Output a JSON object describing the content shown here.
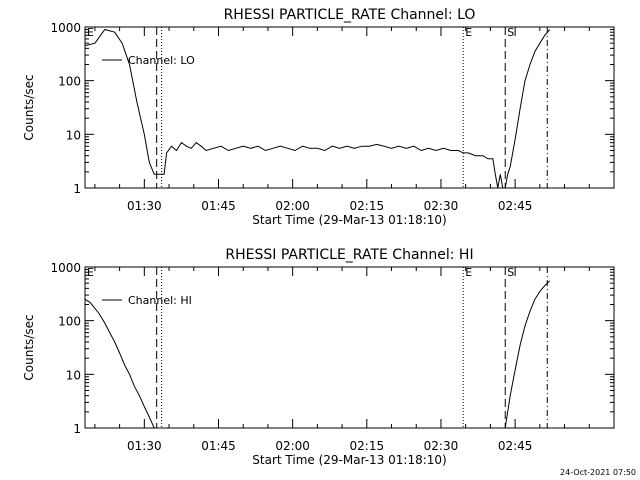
{
  "footer": {
    "timestamp": "24-Oct-2021 07:50"
  },
  "chart_data": [
    {
      "type": "line",
      "title": "RHESSI PARTICLE_RATE Channel: LO",
      "xlabel": "Start Time (29-Mar-13 01:18:10)",
      "ylabel": "Counts/sec",
      "yscale": "log",
      "ylim": [
        1,
        1000
      ],
      "xlim_minutes": [
        0,
        107
      ],
      "xtick_minutes": [
        12,
        27,
        42,
        57,
        72,
        87
      ],
      "xtick_labels": [
        "01:30",
        "01:45",
        "02:00",
        "02:15",
        "02:30",
        "02:45"
      ],
      "ytick_values": [
        1,
        10,
        100,
        1000
      ],
      "ytick_labels": [
        "1",
        "10",
        "100",
        "1000"
      ],
      "legend": {
        "label": "Channel: LO",
        "position": "top-left"
      },
      "markers": [
        {
          "label": "E",
          "minutes": 0,
          "style": "none"
        },
        {
          "label": "",
          "minutes": 14.5,
          "style": "dashed"
        },
        {
          "label": "",
          "minutes": 15.5,
          "style": "dotted"
        },
        {
          "label": "E",
          "minutes": 76.5,
          "style": "dotted"
        },
        {
          "label": "S",
          "minutes": 85,
          "style": "dashed"
        },
        {
          "label": "",
          "minutes": 93.5,
          "style": "dashdot"
        }
      ],
      "series": [
        {
          "name": "Channel: LO",
          "x": [
            0,
            2,
            4,
            6,
            7.5,
            9,
            10.5,
            12,
            13,
            14,
            14.5,
            15,
            15.5,
            16,
            16.5,
            17.5,
            18.5,
            19.5,
            20.5,
            21.5,
            22.5,
            23.5,
            24.5,
            26,
            27.5,
            29,
            30.5,
            32,
            33.5,
            35,
            36.5,
            38,
            39.5,
            41,
            42.5,
            44,
            45.5,
            47,
            48.5,
            50,
            51.5,
            53,
            54.5,
            56,
            57.5,
            59,
            60.5,
            62,
            63.5,
            65,
            66.5,
            68,
            69.5,
            71,
            72.5,
            74,
            75.5,
            76.5,
            77.5,
            79,
            80.5,
            81.5,
            82.5,
            83,
            83.5,
            84,
            84.5,
            85,
            85.5,
            86,
            87,
            88,
            89,
            90,
            91,
            92,
            93,
            94
          ],
          "y": [
            450,
            500,
            900,
            800,
            500,
            200,
            40,
            10,
            3,
            1.8,
            1.8,
            1.8,
            1.8,
            1.8,
            4.5,
            6,
            5,
            7,
            6,
            5.5,
            7,
            6,
            5,
            5.5,
            6,
            5,
            5.5,
            6,
            5.5,
            6,
            5,
            5.5,
            6,
            5.5,
            5,
            6,
            5.5,
            5.5,
            5,
            6,
            5.5,
            6,
            5.5,
            6,
            6,
            6.5,
            6,
            5.5,
            6,
            5.5,
            6,
            5,
            5.5,
            5,
            5.5,
            5,
            5,
            4.5,
            4.5,
            4,
            4,
            3.5,
            3.5,
            1.8,
            1,
            1.8,
            1,
            1,
            1.8,
            2.5,
            8,
            30,
            100,
            200,
            350,
            500,
            700,
            900
          ]
        }
      ]
    },
    {
      "type": "line",
      "title": "RHESSI PARTICLE_RATE Channel: HI",
      "xlabel": "Start Time (29-Mar-13 01:18:10)",
      "ylabel": "Counts/sec",
      "yscale": "log",
      "ylim": [
        1,
        1000
      ],
      "xlim_minutes": [
        0,
        107
      ],
      "xtick_minutes": [
        12,
        27,
        42,
        57,
        72,
        87
      ],
      "xtick_labels": [
        "01:30",
        "01:45",
        "02:00",
        "02:15",
        "02:30",
        "02:45"
      ],
      "ytick_values": [
        1,
        10,
        100,
        1000
      ],
      "ytick_labels": [
        "1",
        "10",
        "100",
        "1000"
      ],
      "legend": {
        "label": "Channel: HI",
        "position": "top-left"
      },
      "markers": [
        {
          "label": "E",
          "minutes": 0,
          "style": "none"
        },
        {
          "label": "",
          "minutes": 14.5,
          "style": "dashed"
        },
        {
          "label": "",
          "minutes": 15.5,
          "style": "dotted"
        },
        {
          "label": "E",
          "minutes": 76.5,
          "style": "dotted"
        },
        {
          "label": "S",
          "minutes": 85,
          "style": "dashed"
        },
        {
          "label": "",
          "minutes": 93.5,
          "style": "dashdot"
        }
      ],
      "series": [
        {
          "name": "Channel: HI",
          "x": [
            0,
            1,
            2,
            3,
            4,
            5,
            6,
            7,
            8,
            9,
            10,
            11,
            12,
            13,
            14,
            85,
            85.5,
            86,
            87,
            88,
            89,
            90,
            91,
            92,
            93,
            94
          ],
          "y": [
            250,
            220,
            170,
            130,
            90,
            60,
            40,
            25,
            15,
            10,
            6,
            4,
            2.5,
            1.6,
            1,
            1,
            2,
            4,
            12,
            35,
            80,
            150,
            250,
            350,
            450,
            550
          ]
        }
      ]
    }
  ]
}
